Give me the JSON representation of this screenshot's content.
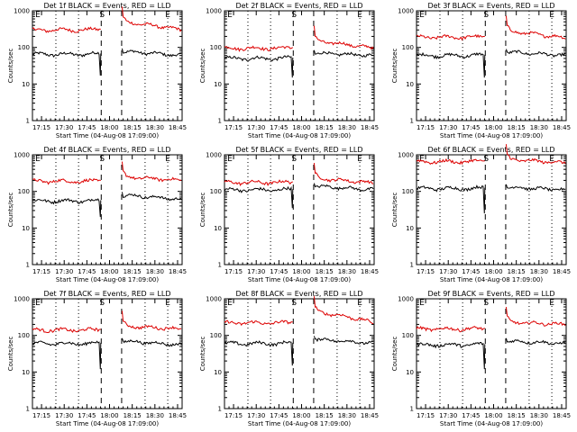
{
  "colors": {
    "events": "#000000",
    "lld": "#dd0000",
    "background": "#ffffff",
    "axes": "#000000"
  },
  "common": {
    "xtick_labels": [
      "17:15",
      "17:30",
      "17:45",
      "18:00",
      "18:15",
      "18:30",
      "18:45"
    ],
    "xlabel": "Start Time (04-Aug-08 17:09:00)",
    "ylabel": "Counts/sec",
    "ytick_labels": [
      "1",
      "10",
      "100",
      "1000"
    ],
    "marker_S": "S",
    "marker_E": "E"
  },
  "chart_data": [
    {
      "type": "line",
      "title": "Det 1f BLACK = Events, RED = LLD",
      "x_range_min": [
        0,
        99
      ],
      "y_scale": "log",
      "ylim": [
        1,
        1000
      ],
      "dashed_vlines_min": [
        45.5,
        59
      ],
      "dotted_vlines_min": [
        15.5,
        30.5,
        74.5,
        89.5
      ],
      "series": [
        {
          "name": "BLACK = Events",
          "before": 65,
          "drop": 17,
          "after": 78,
          "end": 60
        },
        {
          "name": "RED = LLD",
          "before": 300,
          "drop": null,
          "after": 500,
          "end": 300
        }
      ]
    },
    {
      "type": "line",
      "title": "Det 2f BLACK = Events, RED = LLD",
      "x_range_min": [
        0,
        99
      ],
      "y_scale": "log",
      "ylim": [
        1,
        1000
      ],
      "dashed_vlines_min": [
        45.5,
        59
      ],
      "dotted_vlines_min": [
        15.5,
        30.5,
        74.5,
        89.5
      ],
      "series": [
        {
          "name": "BLACK = Events",
          "before": 50,
          "drop": 15,
          "after": 70,
          "end": 60
        },
        {
          "name": "RED = LLD",
          "before": 95,
          "drop": null,
          "after": 150,
          "end": 95
        }
      ]
    },
    {
      "type": "line",
      "title": "Det 3f BLACK = Events, RED = LLD",
      "x_range_min": [
        0,
        99
      ],
      "y_scale": "log",
      "ylim": [
        1,
        1000
      ],
      "dashed_vlines_min": [
        45.5,
        59
      ],
      "dotted_vlines_min": [
        15.5,
        30.5,
        74.5,
        89.5
      ],
      "series": [
        {
          "name": "BLACK = Events",
          "before": 60,
          "drop": 15,
          "after": 75,
          "end": 60
        },
        {
          "name": "RED = LLD",
          "before": 190,
          "drop": null,
          "after": 280,
          "end": 180
        }
      ]
    },
    {
      "type": "line",
      "title": "Det 4f BLACK = Events, RED = LLD",
      "x_range_min": [
        0,
        99
      ],
      "y_scale": "log",
      "ylim": [
        1,
        1000
      ],
      "dashed_vlines_min": [
        45.5,
        59
      ],
      "dotted_vlines_min": [
        15.5,
        30.5,
        74.5,
        89.5
      ],
      "series": [
        {
          "name": "BLACK = Events",
          "before": 55,
          "drop": 20,
          "after": 80,
          "end": 60
        },
        {
          "name": "RED = LLD",
          "before": 190,
          "drop": null,
          "after": 250,
          "end": 200
        }
      ]
    },
    {
      "type": "line",
      "title": "Det 5f BLACK = Events, RED = LLD",
      "x_range_min": [
        0,
        99
      ],
      "y_scale": "log",
      "ylim": [
        1,
        1000
      ],
      "dashed_vlines_min": [
        45.5,
        59
      ],
      "dotted_vlines_min": [
        15.5,
        30.5,
        74.5,
        89.5
      ],
      "series": [
        {
          "name": "BLACK = Events",
          "before": 110,
          "drop": 35,
          "after": 140,
          "end": 110
        },
        {
          "name": "RED = LLD",
          "before": 175,
          "drop": null,
          "after": 230,
          "end": 170
        }
      ]
    },
    {
      "type": "line",
      "title": "Det 6f BLACK = Events, RED = LLD",
      "x_range_min": [
        0,
        99
      ],
      "y_scale": "log",
      "ylim": [
        1,
        1000
      ],
      "dashed_vlines_min": [
        45.5,
        59
      ],
      "dotted_vlines_min": [
        15.5,
        30.5,
        74.5,
        89.5
      ],
      "series": [
        {
          "name": "BLACK = Events",
          "before": 120,
          "drop": 25,
          "after": 130,
          "end": 110
        },
        {
          "name": "RED = LLD",
          "before": 650,
          "drop": null,
          "after": 750,
          "end": 600
        }
      ]
    },
    {
      "type": "line",
      "title": "Det 7f BLACK = Events, RED = LLD",
      "x_range_min": [
        0,
        99
      ],
      "y_scale": "log",
      "ylim": [
        1,
        1000
      ],
      "dashed_vlines_min": [
        45.5,
        59
      ],
      "dotted_vlines_min": [
        15.5,
        30.5,
        74.5,
        89.5
      ],
      "series": [
        {
          "name": "BLACK = Events",
          "before": 60,
          "drop": 12,
          "after": 70,
          "end": 55
        },
        {
          "name": "RED = LLD",
          "before": 140,
          "drop": null,
          "after": 180,
          "end": 150
        }
      ]
    },
    {
      "type": "line",
      "title": "Det 8f BLACK = Events, RED = LLD",
      "x_range_min": [
        0,
        99
      ],
      "y_scale": "log",
      "ylim": [
        1,
        1000
      ],
      "dashed_vlines_min": [
        45.5,
        59
      ],
      "dotted_vlines_min": [
        15.5,
        30.5,
        74.5,
        89.5
      ],
      "series": [
        {
          "name": "BLACK = Events",
          "before": 60,
          "drop": 15,
          "after": 80,
          "end": 60
        },
        {
          "name": "RED = LLD",
          "before": 220,
          "drop": null,
          "after": 450,
          "end": 220
        }
      ]
    },
    {
      "type": "line",
      "title": "Det 9f BLACK = Events, RED = LLD",
      "x_range_min": [
        0,
        99
      ],
      "y_scale": "log",
      "ylim": [
        1,
        1000
      ],
      "dashed_vlines_min": [
        45.5,
        59
      ],
      "dotted_vlines_min": [
        15.5,
        30.5,
        74.5,
        89.5
      ],
      "series": [
        {
          "name": "BLACK = Events",
          "before": 55,
          "drop": 12,
          "after": 70,
          "end": 60
        },
        {
          "name": "RED = LLD",
          "before": 150,
          "drop": null,
          "after": 230,
          "end": 200
        }
      ]
    }
  ]
}
